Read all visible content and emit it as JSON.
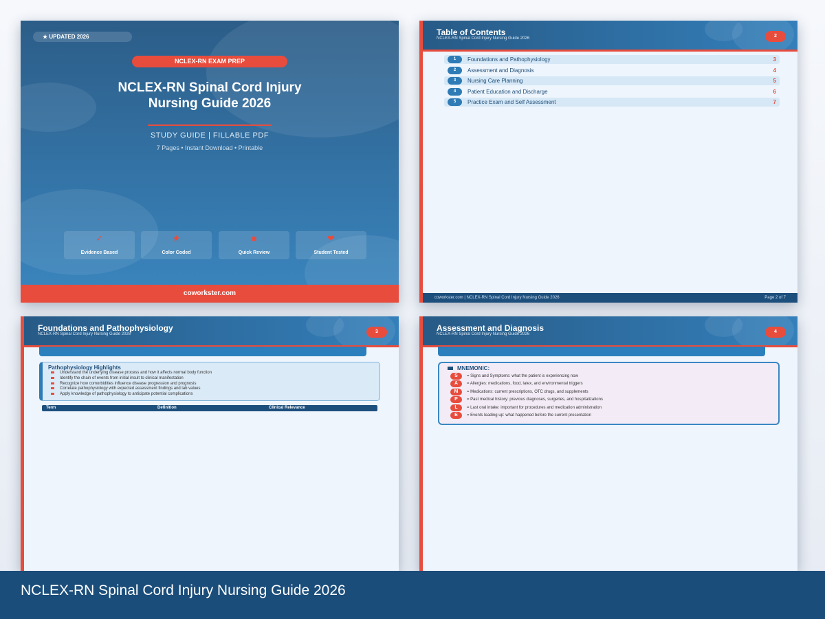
{
  "cover": {
    "badge": "★ UPDATED 2026",
    "exam_tag": "NCLEX-RN EXAM PREP",
    "title_line1": "NCLEX-RN Spinal Cord Injury",
    "title_line2": "Nursing Guide 2026",
    "subtitle": "STUDY GUIDE  |  FILLABLE PDF",
    "meta": "7 Pages  •  Instant Download  •  Printable",
    "features": [
      {
        "icon": "✓",
        "label": "Evidence Based"
      },
      {
        "icon": "★",
        "label": "Color Coded"
      },
      {
        "icon": "■",
        "label": "Quick Review"
      },
      {
        "icon": "❤",
        "label": "Student Tested"
      }
    ],
    "footer": "coworkster.com"
  },
  "toc_page": {
    "title": "Table of Contents",
    "subtitle": "NCLEX-RN Spinal Cord Injury Nursing Guide 2026",
    "page": "2",
    "items": [
      {
        "n": "1",
        "label": "Foundations and Pathophysiology",
        "page": "3"
      },
      {
        "n": "2",
        "label": "Assessment and Diagnosis",
        "page": "4"
      },
      {
        "n": "3",
        "label": "Nursing Care Planning",
        "page": "5"
      },
      {
        "n": "4",
        "label": "Patient Education and Discharge",
        "page": "6"
      },
      {
        "n": "5",
        "label": "Practice Exam and Self Assessment",
        "page": "7"
      }
    ],
    "footer_left": "coworkster.com  |  NCLEX-RN Spinal Cord Injury Nursing Guide 2026",
    "footer_right": "Page 2 of 7"
  },
  "page3": {
    "title": "Foundations and Pathophysiology",
    "subtitle": "NCLEX-RN Spinal Cord Injury Nursing Guide 2026",
    "page": "3",
    "box_title": "Pathophysiology Highlights",
    "bullets": [
      "Understand the underlying disease process and how it affects normal body function",
      "Identify the chain of events from initial insult to clinical manifestation",
      "Recognize how comorbidities influence disease progression and prognosis",
      "Correlate pathophysiology with expected assessment findings and lab values",
      "Apply knowledge of pathophysiology to anticipate potential complications"
    ],
    "table_headers": [
      "Term",
      "Definition",
      "Clinical Relevance"
    ]
  },
  "page4": {
    "title": "Assessment and Diagnosis",
    "subtitle": "NCLEX-RN Spinal Cord Injury Nursing Guide 2026",
    "page": "4",
    "mnemonic_title": "MNEMONIC:",
    "mnemonic": [
      {
        "l": "S",
        "t": "= Signs and Symptoms: what the patient is experiencing now"
      },
      {
        "l": "A",
        "t": "= Allergies: medications, food, latex, and environmental triggers"
      },
      {
        "l": "M",
        "t": "= Medications: current prescriptions, OTC drugs, and supplements"
      },
      {
        "l": "P",
        "t": "= Past medical history: previous diagnoses, surgeries, and hospitalizations"
      },
      {
        "l": "L",
        "t": "= Last oral intake: important for procedures and medication administration"
      },
      {
        "l": "E",
        "t": "= Events leading up: what happened before the current presentation"
      }
    ]
  },
  "banner": "NCLEX-RN Spinal Cord Injury Nursing Guide 2026",
  "colors": {
    "primary": "#1b4d7a",
    "accent": "#e84c3d",
    "light": "#eef5fc"
  }
}
